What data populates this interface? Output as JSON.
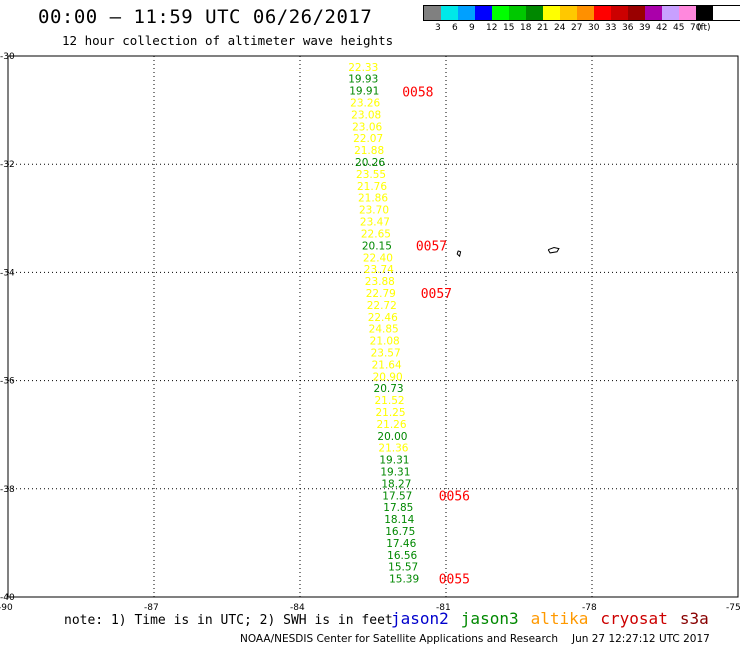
{
  "header": {
    "title": "00:00 — 11:59 UTC 06/26/2017",
    "subtitle": "12 hour collection of altimeter wave heights"
  },
  "legend": {
    "colors": [
      "#808080",
      "#00e8e8",
      "#00a0ff",
      "#0000ff",
      "#00ff00",
      "#00c800",
      "#008800",
      "#ffff00",
      "#ffc800",
      "#ff9000",
      "#ff0000",
      "#cc0000",
      "#990000",
      "#aa00aa",
      "#c8a0ff",
      "#ff88dd",
      "#000000"
    ],
    "labels": [
      "3",
      "6",
      "9",
      "12",
      "15",
      "18",
      "21",
      "24",
      "27",
      "30",
      "33",
      "36",
      "39",
      "42",
      "45",
      "70",
      "(ft)"
    ]
  },
  "map": {
    "lon_range": [
      -90,
      -75
    ],
    "lat_range": [
      -40,
      -30
    ],
    "lon_ticks": [
      "-90",
      "-87",
      "-84",
      "-81",
      "-78",
      "-75"
    ],
    "lat_ticks": [
      "-30",
      "-32",
      "-34",
      "-36",
      "-38",
      "-40"
    ],
    "grid": true
  },
  "observations": [
    {
      "lat": -30.2,
      "lon": -82.7,
      "v": "22.33",
      "c": "#ffff00"
    },
    {
      "lat": -30.42,
      "lon": -82.7,
      "v": "19.93",
      "c": "#008800"
    },
    {
      "lat": -30.64,
      "lon": -82.68,
      "v": "19.91",
      "c": "#008800"
    },
    {
      "lat": -30.86,
      "lon": -82.66,
      "v": "23.26",
      "c": "#ffff00"
    },
    {
      "lat": -31.08,
      "lon": -82.64,
      "v": "23.08",
      "c": "#ffff00"
    },
    {
      "lat": -31.3,
      "lon": -82.62,
      "v": "23.06",
      "c": "#ffff00"
    },
    {
      "lat": -31.52,
      "lon": -82.6,
      "v": "22.07",
      "c": "#ffff00"
    },
    {
      "lat": -31.74,
      "lon": -82.58,
      "v": "21.88",
      "c": "#ffff00"
    },
    {
      "lat": -31.96,
      "lon": -82.56,
      "v": "20.26",
      "c": "#008800"
    },
    {
      "lat": -32.18,
      "lon": -82.54,
      "v": "23.55",
      "c": "#ffff00"
    },
    {
      "lat": -32.4,
      "lon": -82.52,
      "v": "21.76",
      "c": "#ffff00"
    },
    {
      "lat": -32.62,
      "lon": -82.5,
      "v": "21.86",
      "c": "#ffff00"
    },
    {
      "lat": -32.84,
      "lon": -82.48,
      "v": "23.70",
      "c": "#ffff00"
    },
    {
      "lat": -33.06,
      "lon": -82.46,
      "v": "23.47",
      "c": "#ffff00"
    },
    {
      "lat": -33.28,
      "lon": -82.44,
      "v": "22.65",
      "c": "#ffff00"
    },
    {
      "lat": -33.5,
      "lon": -82.42,
      "v": "20.15",
      "c": "#008800"
    },
    {
      "lat": -33.72,
      "lon": -82.4,
      "v": "22.40",
      "c": "#ffff00"
    },
    {
      "lat": -33.94,
      "lon": -82.38,
      "v": "23.74",
      "c": "#ffff00"
    },
    {
      "lat": -34.16,
      "lon": -82.36,
      "v": "23.88",
      "c": "#ffff00"
    },
    {
      "lat": -34.38,
      "lon": -82.34,
      "v": "22.79",
      "c": "#ffff00"
    },
    {
      "lat": -34.6,
      "lon": -82.32,
      "v": "22.72",
      "c": "#ffff00"
    },
    {
      "lat": -34.82,
      "lon": -82.3,
      "v": "22.46",
      "c": "#ffff00"
    },
    {
      "lat": -35.04,
      "lon": -82.28,
      "v": "24.85",
      "c": "#ffff00"
    },
    {
      "lat": -35.26,
      "lon": -82.26,
      "v": "21.08",
      "c": "#ffff00"
    },
    {
      "lat": -35.48,
      "lon": -82.24,
      "v": "23.57",
      "c": "#ffff00"
    },
    {
      "lat": -35.7,
      "lon": -82.22,
      "v": "21.64",
      "c": "#ffff00"
    },
    {
      "lat": -35.92,
      "lon": -82.2,
      "v": "20.90",
      "c": "#ffff00"
    },
    {
      "lat": -36.14,
      "lon": -82.18,
      "v": "20.73",
      "c": "#008800"
    },
    {
      "lat": -36.36,
      "lon": -82.16,
      "v": "21.52",
      "c": "#ffff00"
    },
    {
      "lat": -36.58,
      "lon": -82.14,
      "v": "21.25",
      "c": "#ffff00"
    },
    {
      "lat": -36.8,
      "lon": -82.12,
      "v": "21.26",
      "c": "#ffff00"
    },
    {
      "lat": -37.02,
      "lon": -82.1,
      "v": "20.00",
      "c": "#008800"
    },
    {
      "lat": -37.24,
      "lon": -82.08,
      "v": "21.36",
      "c": "#ffff00"
    },
    {
      "lat": -37.46,
      "lon": -82.06,
      "v": "19.31",
      "c": "#008800"
    },
    {
      "lat": -37.68,
      "lon": -82.04,
      "v": "19.31",
      "c": "#008800"
    },
    {
      "lat": -37.9,
      "lon": -82.02,
      "v": "18.27",
      "c": "#008800"
    },
    {
      "lat": -38.12,
      "lon": -82.0,
      "v": "17.57",
      "c": "#008800"
    },
    {
      "lat": -38.34,
      "lon": -81.98,
      "v": "17.85",
      "c": "#008800"
    },
    {
      "lat": -38.56,
      "lon": -81.96,
      "v": "18.14",
      "c": "#008800"
    },
    {
      "lat": -38.78,
      "lon": -81.94,
      "v": "16.75",
      "c": "#008800"
    },
    {
      "lat": -39.0,
      "lon": -81.92,
      "v": "17.46",
      "c": "#008800"
    },
    {
      "lat": -39.22,
      "lon": -81.9,
      "v": "16.56",
      "c": "#008800"
    },
    {
      "lat": -39.44,
      "lon": -81.88,
      "v": "15.57",
      "c": "#008800"
    },
    {
      "lat": -39.66,
      "lon": -81.86,
      "v": "15.39",
      "c": "#008800"
    }
  ],
  "time_labels": [
    {
      "lat": -30.66,
      "lon": -81.9,
      "text": "0058"
    },
    {
      "lat": -33.5,
      "lon": -81.62,
      "text": "0057"
    },
    {
      "lat": -34.38,
      "lon": -81.52,
      "text": "0057"
    },
    {
      "lat": -38.12,
      "lon": -81.15,
      "text": "0056"
    },
    {
      "lat": -39.66,
      "lon": -81.15,
      "text": "0055"
    }
  ],
  "time_label_color": "#ff0000",
  "islands": [
    [
      [
        -80.75,
        -33.6
      ],
      [
        -80.7,
        -33.62
      ],
      [
        -80.72,
        -33.7
      ],
      [
        -80.77,
        -33.66
      ],
      [
        -80.75,
        -33.6
      ]
    ],
    [
      [
        -78.9,
        -33.58
      ],
      [
        -78.78,
        -33.54
      ],
      [
        -78.68,
        -33.56
      ],
      [
        -78.72,
        -33.62
      ],
      [
        -78.86,
        -33.64
      ],
      [
        -78.9,
        -33.58
      ]
    ]
  ],
  "footer": {
    "note": "note: 1) Time is in UTC; 2) SWH is in feet",
    "satellites": [
      {
        "name": "jason2",
        "color": "#0000cc"
      },
      {
        "name": "jason3",
        "color": "#008800"
      },
      {
        "name": "altika",
        "color": "#ff9900"
      },
      {
        "name": "cryosat",
        "color": "#cc0000"
      },
      {
        "name": "s3a",
        "color": "#880000"
      }
    ],
    "credit": "NOAA/NESDIS Center for Satellite Applications and Research",
    "timestamp": "Jun 27 12:27:12 UTC 2017"
  }
}
